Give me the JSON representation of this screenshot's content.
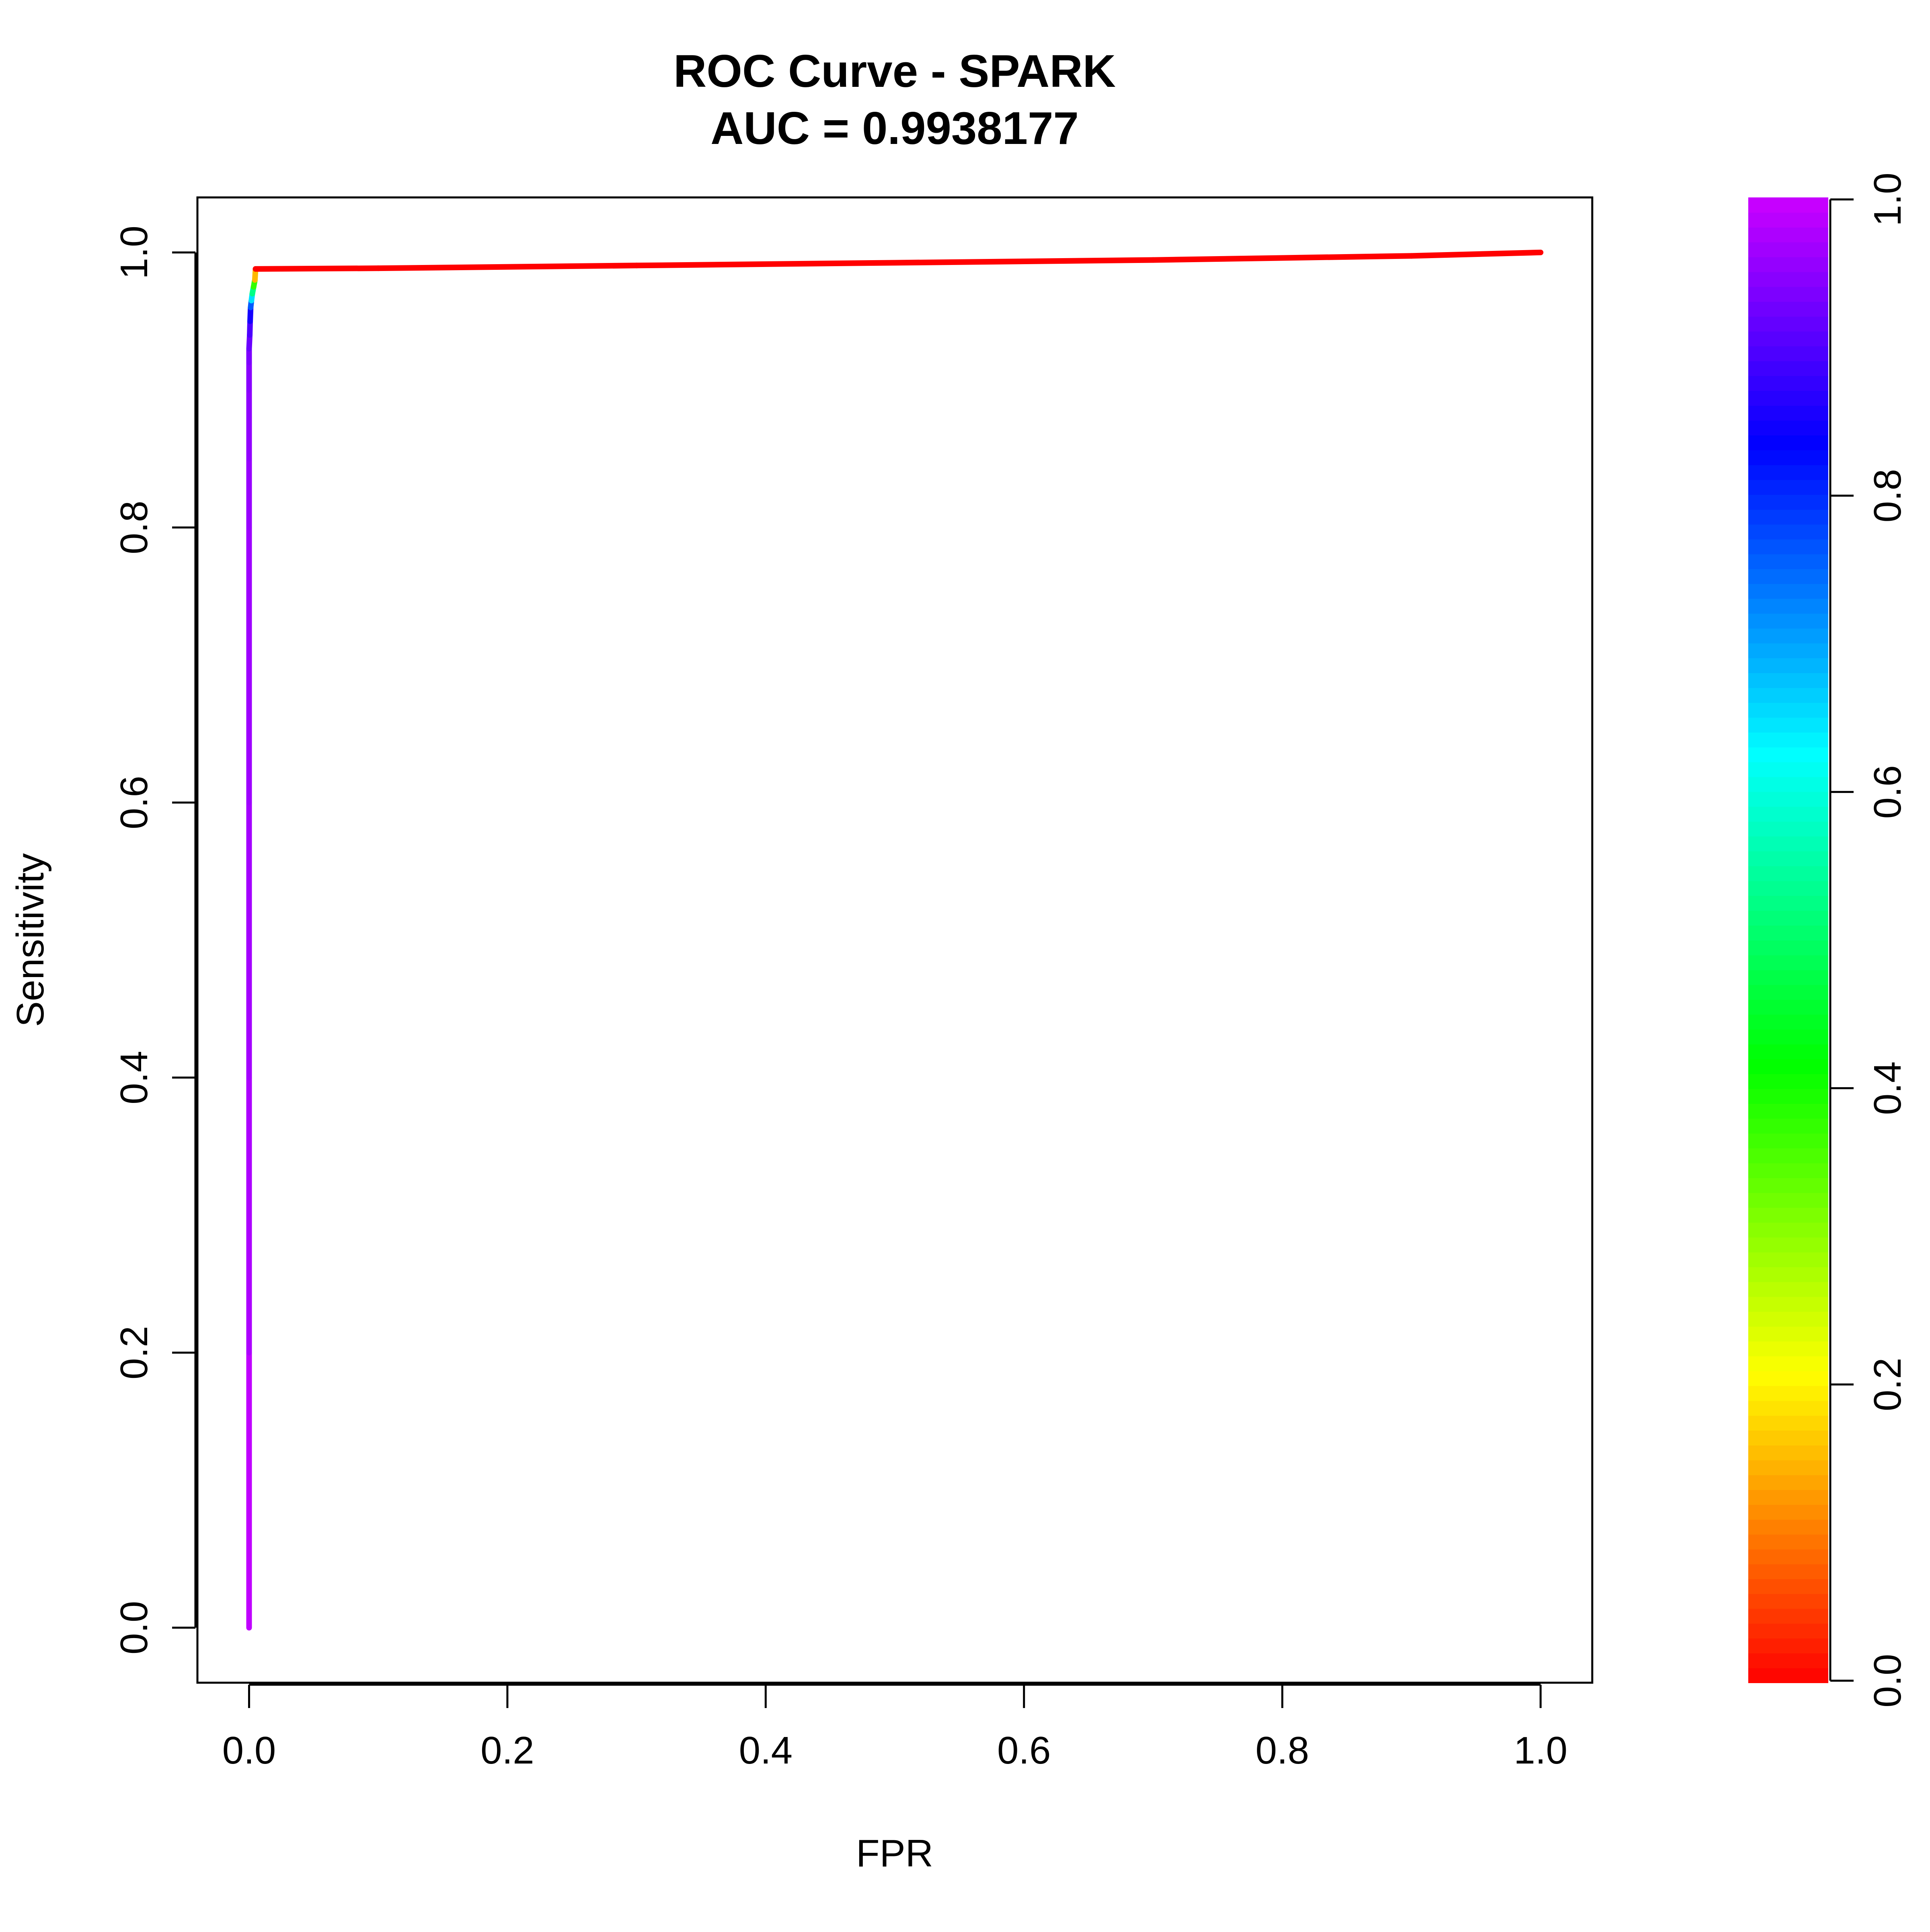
{
  "chart_data": {
    "type": "line",
    "title": "ROC Curve - SPARK",
    "subtitle": "AUC = 0.9938177",
    "xlabel": "FPR",
    "ylabel": "Sensitivity",
    "xlim": [
      -0.04,
      1.04
    ],
    "ylim": [
      -0.04,
      1.04
    ],
    "x_ticks": [
      "0.0",
      "0.2",
      "0.4",
      "0.6",
      "0.8",
      "1.0"
    ],
    "y_ticks": [
      "0.0",
      "0.2",
      "0.4",
      "0.6",
      "0.8",
      "1.0"
    ],
    "grid": false,
    "legend": "none",
    "series": [
      {
        "x": [
          0.0,
          0.0,
          0.0,
          0.0,
          0.0,
          0.0,
          0.0,
          0.0,
          0.0,
          0.0,
          0.0005,
          0.0008,
          0.0012,
          0.0018,
          0.0025,
          0.0035,
          0.0045,
          0.005,
          0.1,
          0.3,
          0.5,
          0.7,
          0.9,
          1.0
        ],
        "y": [
          0.0,
          0.2,
          0.4,
          0.6,
          0.8,
          0.85,
          0.88,
          0.9,
          0.92,
          0.93,
          0.94,
          0.95,
          0.96,
          0.965,
          0.97,
          0.975,
          0.98,
          0.988,
          0.9885,
          0.9905,
          0.9925,
          0.9945,
          0.9975,
          1.0
        ],
        "cutoff": [
          1.0,
          0.98,
          0.97,
          0.965,
          0.96,
          0.955,
          0.95,
          0.95,
          0.94,
          0.93,
          0.91,
          0.88,
          0.82,
          0.7,
          0.6,
          0.45,
          0.3,
          0.0,
          0.0,
          0.0,
          0.0,
          0.0,
          0.0,
          0.0
        ]
      }
    ],
    "colorbar": {
      "min": 0.0,
      "max": 1.0,
      "ticks": [
        "0.0",
        "0.2",
        "0.4",
        "0.6",
        "0.8",
        "1.0"
      ],
      "palette": "rainbow"
    }
  }
}
